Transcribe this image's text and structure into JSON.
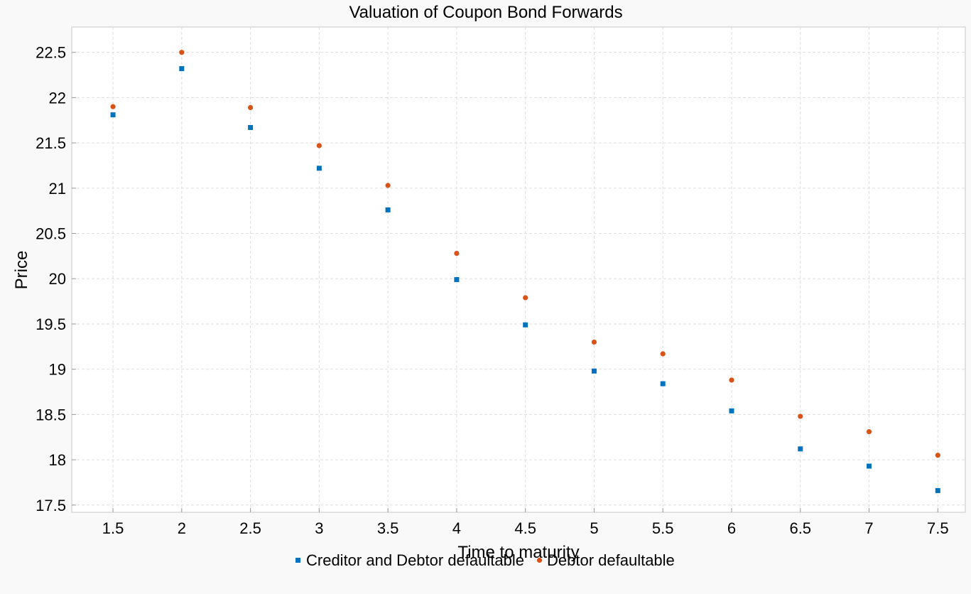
{
  "chart_data": {
    "type": "scatter",
    "title": "Valuation of Coupon Bond Forwards",
    "xlabel": "Time to maturity",
    "ylabel": "Price",
    "x": [
      1.5,
      2,
      2.5,
      3,
      3.5,
      4,
      4.5,
      5,
      5.5,
      6,
      6.5,
      7,
      7.5
    ],
    "xlim": [
      1.2,
      7.7
    ],
    "ylim": [
      17.42,
      22.78
    ],
    "xticks": [
      1.5,
      2,
      2.5,
      3,
      3.5,
      4,
      4.5,
      5,
      5.5,
      6,
      6.5,
      7,
      7.5
    ],
    "xtick_labels": [
      "1.5",
      "2",
      "2.5",
      "3",
      "3.5",
      "4",
      "4.5",
      "5",
      "5.5",
      "6",
      "6.5",
      "7",
      "7.5"
    ],
    "yticks": [
      17.5,
      18,
      18.5,
      19,
      19.5,
      20,
      20.5,
      21,
      21.5,
      22,
      22.5
    ],
    "ytick_labels": [
      "17.5",
      "18",
      "18.5",
      "19",
      "19.5",
      "20",
      "20.5",
      "21",
      "21.5",
      "22",
      "22.5"
    ],
    "grid": true,
    "legend_position": "bottom",
    "series": [
      {
        "name": "Creditor and Debtor defaultable",
        "marker": "square",
        "color": "#0072bd",
        "values": [
          21.81,
          22.32,
          21.67,
          21.22,
          20.76,
          19.99,
          19.49,
          18.98,
          18.84,
          18.54,
          18.12,
          17.93,
          17.66
        ]
      },
      {
        "name": "Debtor defaultable",
        "marker": "circle",
        "color": "#d95319",
        "values": [
          21.9,
          22.5,
          21.89,
          21.47,
          21.03,
          20.28,
          19.79,
          19.3,
          19.17,
          18.88,
          18.48,
          18.31,
          18.05
        ]
      }
    ]
  }
}
